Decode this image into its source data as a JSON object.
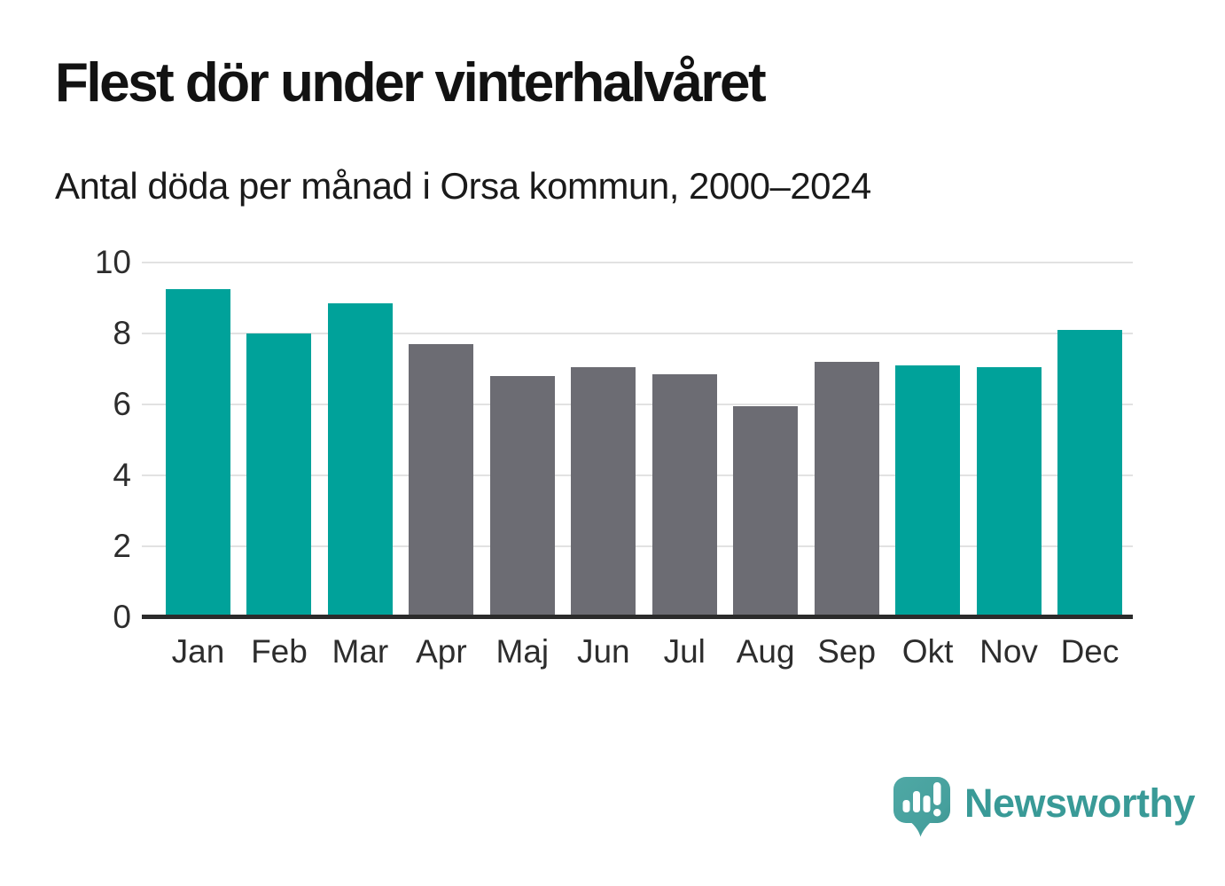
{
  "title": "Flest dör under vinterhalvåret",
  "subtitle": "Antal döda per månad i Orsa kommun, 2000–2024",
  "chart_data": {
    "type": "bar",
    "categories": [
      "Jan",
      "Feb",
      "Mar",
      "Apr",
      "Maj",
      "Jun",
      "Jul",
      "Aug",
      "Sep",
      "Okt",
      "Nov",
      "Dec"
    ],
    "values": [
      9.25,
      8.0,
      8.85,
      7.7,
      6.8,
      7.05,
      6.85,
      5.95,
      7.2,
      7.1,
      7.05,
      8.1
    ],
    "bar_colors": [
      "#00a29a",
      "#00a29a",
      "#00a29a",
      "#6c6c73",
      "#6c6c73",
      "#6c6c73",
      "#6c6c73",
      "#6c6c73",
      "#6c6c73",
      "#00a29a",
      "#00a29a",
      "#00a29a"
    ],
    "title": "Flest dör under vinterhalvåret",
    "subtitle": "Antal döda per månad i Orsa kommun, 2000–2024",
    "xlabel": "",
    "ylabel": "",
    "ylim": [
      0,
      10
    ],
    "yticks": [
      0,
      2,
      4,
      6,
      8,
      10
    ],
    "grid": true,
    "legend": false,
    "series_meaning": {
      "teal_bars": "winter half-year months (Jan, Feb, Mar, Okt, Nov, Dec)",
      "gray_bars": "summer half-year months (Apr–Sep)"
    }
  },
  "colors": {
    "winter_bar": "#00a29a",
    "summer_bar": "#6c6c73",
    "axis_line": "#2b2b2b",
    "gridline": "#e2e2e2",
    "title_text": "#121212",
    "tick_text": "#2d2d2d",
    "logo_teal": "#399a97"
  },
  "branding": {
    "logo_text": "Newsworthy",
    "logo_icon": "newsworthy-speech-bubble-bar-chart-icon"
  }
}
